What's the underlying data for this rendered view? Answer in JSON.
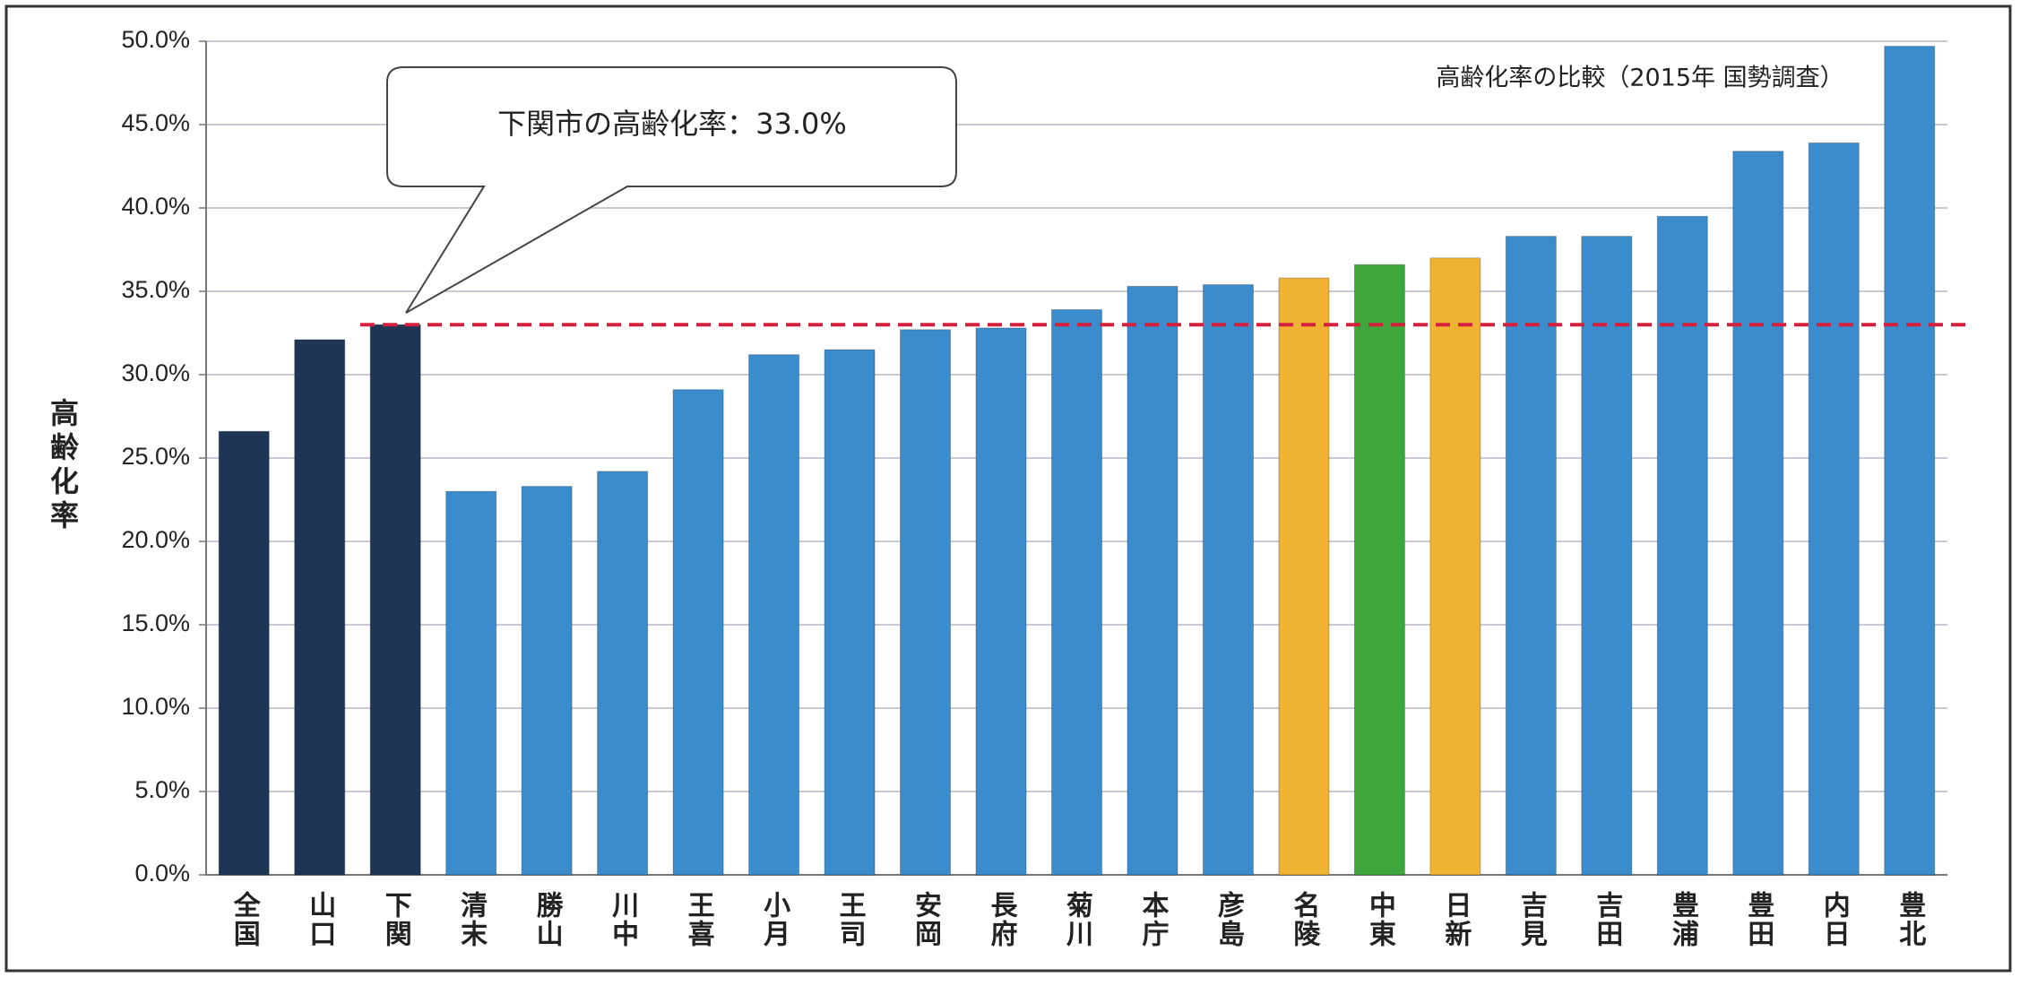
{
  "chart_data": {
    "type": "bar",
    "title": "高齢化率の比較（2015年 国勢調査）",
    "y_label": "高齢化率",
    "annotation": "下関市の高齢化率：33.0%",
    "categories": [
      "全国",
      "山口",
      "下関",
      "清末",
      "勝山",
      "川中",
      "王喜",
      "小月",
      "王司",
      "安岡",
      "長府",
      "菊川",
      "本庁",
      "彦島",
      "名陵",
      "中東",
      "日新",
      "吉見",
      "吉田",
      "豊浦",
      "豊田",
      "内日",
      "豊北"
    ],
    "values": [
      26.6,
      32.1,
      33.0,
      23.0,
      23.3,
      24.2,
      29.1,
      31.2,
      31.5,
      32.7,
      32.8,
      33.9,
      35.3,
      35.4,
      35.8,
      36.6,
      37.0,
      38.3,
      38.3,
      39.5,
      43.4,
      43.9,
      49.7
    ],
    "colors": [
      "#1f3556",
      "#1f3556",
      "#1f3556",
      "#3b8ccc",
      "#3b8ccc",
      "#3b8ccc",
      "#3b8ccc",
      "#3b8ccc",
      "#3b8ccc",
      "#3b8ccc",
      "#3b8ccc",
      "#3b8ccc",
      "#3b8ccc",
      "#3b8ccc",
      "#f0b232",
      "#3fa63d",
      "#f0b232",
      "#3b8ccc",
      "#3b8ccc",
      "#3b8ccc",
      "#3b8ccc",
      "#3b8ccc",
      "#3b8ccc"
    ],
    "reference_line": {
      "value": 33.0,
      "color": "#d4203c"
    },
    "ylim": [
      0,
      50
    ],
    "yticks": [
      {
        "value": 0,
        "label": "0.0%"
      },
      {
        "value": 5,
        "label": "5.0%"
      },
      {
        "value": 10,
        "label": "10.0%"
      },
      {
        "value": 15,
        "label": "15.0%"
      },
      {
        "value": 20,
        "label": "20.0%"
      },
      {
        "value": 25,
        "label": "25.0%"
      },
      {
        "value": 30,
        "label": "30.0%"
      },
      {
        "value": 35,
        "label": "35.0%"
      },
      {
        "value": 40,
        "label": "40.0%"
      },
      {
        "value": 45,
        "label": "45.0%"
      },
      {
        "value": 50,
        "label": "50.0%"
      }
    ],
    "grid": true
  }
}
